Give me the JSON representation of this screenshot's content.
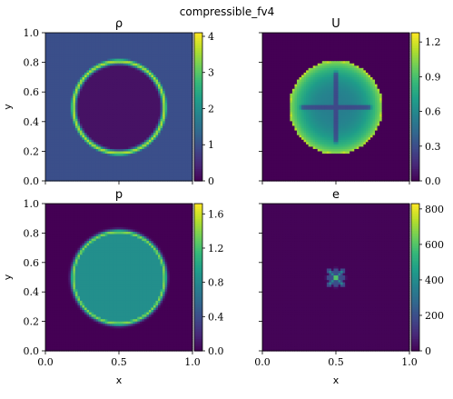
{
  "figure": {
    "suptitle": "compressible_fv4"
  },
  "colors": {
    "colormap": "viridis",
    "viridis_stops": [
      "#440154",
      "#482878",
      "#3e4989",
      "#31688e",
      "#26828e",
      "#1f9e89",
      "#35b779",
      "#6ece58",
      "#b5de2b",
      "#fde725"
    ]
  },
  "chart_data": [
    {
      "type": "heatmap",
      "title": "ρ",
      "field": "density",
      "xlabel": "",
      "ylabel": "y",
      "xlim": [
        0.0,
        1.0
      ],
      "ylim": [
        0.0,
        1.0
      ],
      "x_tick_labels": [],
      "y_tick_labels": [
        "0.0",
        "0.2",
        "0.4",
        "0.6",
        "0.8",
        "1.0"
      ],
      "y_ticks": [
        0.0,
        0.2,
        0.4,
        0.6,
        0.8,
        1.0
      ],
      "colorbar": {
        "range": [
          0,
          4.1
        ],
        "ticks": [
          0,
          1,
          2,
          3,
          4
        ],
        "tick_labels": [
          "0",
          "1",
          "2",
          "3",
          "4"
        ]
      },
      "pattern": {
        "shape": "ring",
        "center": [
          0.5,
          0.5
        ],
        "background": 1.0,
        "inside": 0.2,
        "ring_radius": 0.31,
        "ring_width": 0.013,
        "ring_value": 3.6
      }
    },
    {
      "type": "heatmap",
      "title": "U",
      "field": "velocity magnitude",
      "xlabel": "",
      "ylabel": "",
      "xlim": [
        0.0,
        1.0
      ],
      "ylim": [
        0.0,
        1.0
      ],
      "x_tick_labels": [],
      "y_tick_labels": [],
      "colorbar": {
        "range": [
          0.0,
          1.28
        ],
        "ticks": [
          0.0,
          0.3,
          0.6,
          0.9,
          1.2
        ],
        "tick_labels": [
          "0.0",
          "0.3",
          "0.6",
          "0.9",
          "1.2"
        ]
      },
      "pattern": {
        "shape": "star-disk",
        "center": [
          0.5,
          0.5
        ],
        "background": 0.0,
        "radius": 0.31,
        "edge_value": 1.05,
        "center_value": 0.55,
        "arm_value": 0.15,
        "arm_length": 0.22
      }
    },
    {
      "type": "heatmap",
      "title": "p",
      "field": "pressure",
      "xlabel": "x",
      "ylabel": "y",
      "xlim": [
        0.0,
        1.0
      ],
      "ylim": [
        0.0,
        1.0
      ],
      "x_tick_labels": [
        "0.0",
        "0.5",
        "1.0"
      ],
      "x_ticks": [
        0.0,
        0.5,
        1.0
      ],
      "y_tick_labels": [
        "0.0",
        "0.2",
        "0.4",
        "0.6",
        "0.8",
        "1.0"
      ],
      "y_ticks": [
        0.0,
        0.2,
        0.4,
        0.6,
        0.8,
        1.0
      ],
      "colorbar": {
        "range": [
          0.0,
          1.72
        ],
        "ticks": [
          0.0,
          0.4,
          0.8,
          1.2,
          1.6
        ],
        "tick_labels": [
          "0.0",
          "0.4",
          "0.8",
          "1.2",
          "1.6"
        ]
      },
      "pattern": {
        "shape": "plateau",
        "center": [
          0.5,
          0.5
        ],
        "background": 0.0,
        "inside": 0.85,
        "radius": 0.31,
        "ring_width": 0.012,
        "ring_value": 1.4
      }
    },
    {
      "type": "heatmap",
      "title": "e",
      "field": "internal energy",
      "xlabel": "x",
      "ylabel": "",
      "xlim": [
        0.0,
        1.0
      ],
      "ylim": [
        0.0,
        1.0
      ],
      "x_tick_labels": [
        "0.0",
        "0.5",
        "1.0"
      ],
      "x_ticks": [
        0.0,
        0.5,
        1.0
      ],
      "y_tick_labels": [],
      "colorbar": {
        "range": [
          0,
          830
        ],
        "ticks": [
          0,
          200,
          400,
          600,
          800
        ],
        "tick_labels": [
          "0",
          "200",
          "400",
          "600",
          "800"
        ]
      },
      "pattern": {
        "shape": "hot-spot",
        "center": [
          0.5,
          0.5
        ],
        "background": 8,
        "peak": 820,
        "core_radius": 0.04,
        "arm_value": 380,
        "arm_length": 0.065
      }
    }
  ]
}
